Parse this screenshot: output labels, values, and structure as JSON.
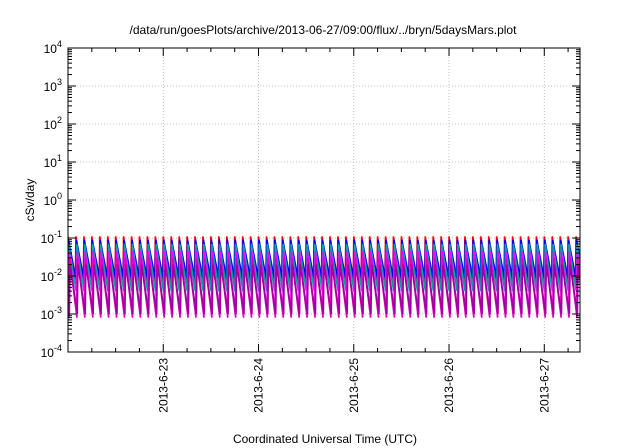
{
  "chart_data": {
    "type": "line",
    "title": "/data/run/goesPlots/archive/2013-06-27/09:00/flux/../bryn/5daysMars.plot",
    "xlabel": "Coordinated Universal Time (UTC)",
    "ylabel": "cSv/day",
    "x_scale": "time",
    "y_scale": "log",
    "xlim": [
      "2013-06-22 00:00",
      "2013-06-27 09:00"
    ],
    "ylim": [
      0.0001,
      10000
    ],
    "x_ticks": [
      {
        "label": "2013-6-23",
        "at": "2013-06-23"
      },
      {
        "label": "2013-6-24",
        "at": "2013-06-24"
      },
      {
        "label": "2013-6-25",
        "at": "2013-06-25"
      },
      {
        "label": "2013-6-26",
        "at": "2013-06-26"
      },
      {
        "label": "2013-6-27",
        "at": "2013-06-27"
      }
    ],
    "y_ticks": [
      {
        "value": 0.0001,
        "base": "10",
        "exp": "-4"
      },
      {
        "value": 0.001,
        "base": "10",
        "exp": "-3"
      },
      {
        "value": 0.01,
        "base": "10",
        "exp": "-2"
      },
      {
        "value": 0.1,
        "base": "10",
        "exp": "-1"
      },
      {
        "value": 1,
        "base": "10",
        "exp": "0"
      },
      {
        "value": 10,
        "base": "10",
        "exp": "1"
      },
      {
        "value": 100,
        "base": "10",
        "exp": "2"
      },
      {
        "value": 1000,
        "base": "10",
        "exp": "3"
      },
      {
        "value": 10000,
        "base": "10",
        "exp": "4"
      }
    ],
    "grid": true,
    "legend": "none",
    "cycle_hours": 2,
    "series": [
      {
        "color": "#ff0000",
        "peak": 0.11,
        "trough": 0.006
      },
      {
        "color": "#0000ff",
        "peak": 0.09,
        "trough": 0.009
      },
      {
        "color": "#00a0a0",
        "peak": 0.07,
        "trough": 0.004
      },
      {
        "color": "#ff00ff",
        "peak": 0.045,
        "trough": 0.0012
      },
      {
        "color": "#e000c0",
        "peak": 0.03,
        "trough": 0.0008
      },
      {
        "color": "#a000a0",
        "peak": 0.02,
        "trough": 0.001
      }
    ]
  }
}
